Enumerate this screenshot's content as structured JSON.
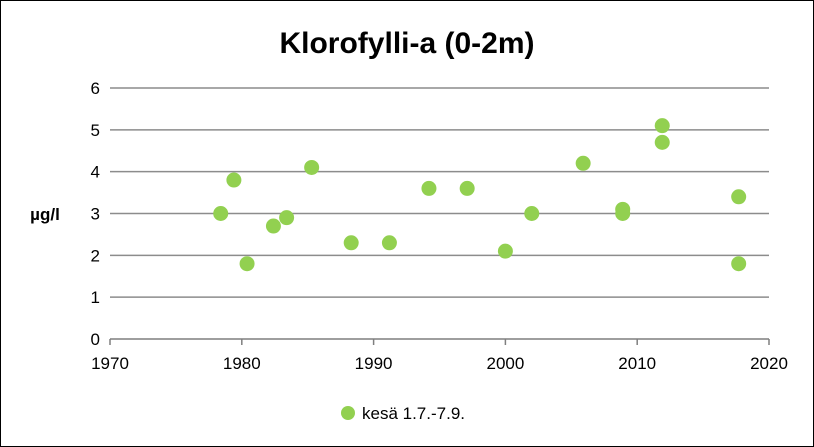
{
  "chart_data": {
    "type": "scatter",
    "title": "Klorofylli-a (0-2m)",
    "xlabel": "",
    "ylabel": "µg/l",
    "xlim": [
      1970,
      2020
    ],
    "ylim": [
      0,
      6
    ],
    "x_ticks": [
      "1970",
      "1980",
      "1990",
      "2000",
      "2010",
      "2020"
    ],
    "y_ticks": [
      "0",
      "1",
      "2",
      "3",
      "4",
      "5",
      "6"
    ],
    "grid": true,
    "legend_position": "bottom",
    "series": [
      {
        "name": "kesä 1.7.-7.9.",
        "color": "#92d050",
        "points": [
          {
            "x": 1978.4,
            "y": 3.0
          },
          {
            "x": 1979.4,
            "y": 3.8
          },
          {
            "x": 1980.4,
            "y": 1.8
          },
          {
            "x": 1982.4,
            "y": 2.7
          },
          {
            "x": 1983.4,
            "y": 2.9
          },
          {
            "x": 1985.3,
            "y": 4.1
          },
          {
            "x": 1988.3,
            "y": 2.3
          },
          {
            "x": 1991.2,
            "y": 2.3
          },
          {
            "x": 1994.2,
            "y": 3.6
          },
          {
            "x": 1997.1,
            "y": 3.6
          },
          {
            "x": 2000.0,
            "y": 2.1
          },
          {
            "x": 2002.0,
            "y": 3.0
          },
          {
            "x": 2005.9,
            "y": 4.2
          },
          {
            "x": 2008.9,
            "y": 3.1
          },
          {
            "x": 2008.9,
            "y": 3.0
          },
          {
            "x": 2011.9,
            "y": 5.1
          },
          {
            "x": 2011.9,
            "y": 4.7
          },
          {
            "x": 2017.7,
            "y": 3.4
          },
          {
            "x": 2017.7,
            "y": 1.8
          }
        ]
      }
    ]
  }
}
